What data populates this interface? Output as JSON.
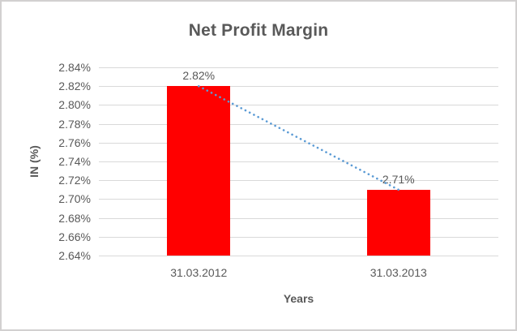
{
  "canvas": {
    "background": "#FFFFFF",
    "border_color": "#D2D0D0"
  },
  "chart_data": {
    "type": "bar",
    "title": "Net Profit Margin",
    "xlabel": "Years",
    "ylabel": "IN (%)",
    "categories": [
      "31.03.2012",
      "31.03.2013"
    ],
    "values": [
      2.82,
      2.71
    ],
    "data_labels": [
      "2.82%",
      "2.71%"
    ],
    "ylim": [
      2.64,
      2.84
    ],
    "ytick_step": 0.02,
    "ytick_labels": [
      "2.84%",
      "2.82%",
      "2.80%",
      "2.78%",
      "2.76%",
      "2.74%",
      "2.72%",
      "2.70%",
      "2.68%",
      "2.66%",
      "2.64%"
    ],
    "grid": true,
    "legend": "none",
    "bar_color": "#FF0000",
    "gridline_color": "#D9D9D9",
    "text_color": "#595959",
    "trendline": {
      "type": "linear",
      "style": "dotted",
      "color": "#5B9BD5",
      "from_value": 2.82,
      "to_value": 2.71
    }
  }
}
